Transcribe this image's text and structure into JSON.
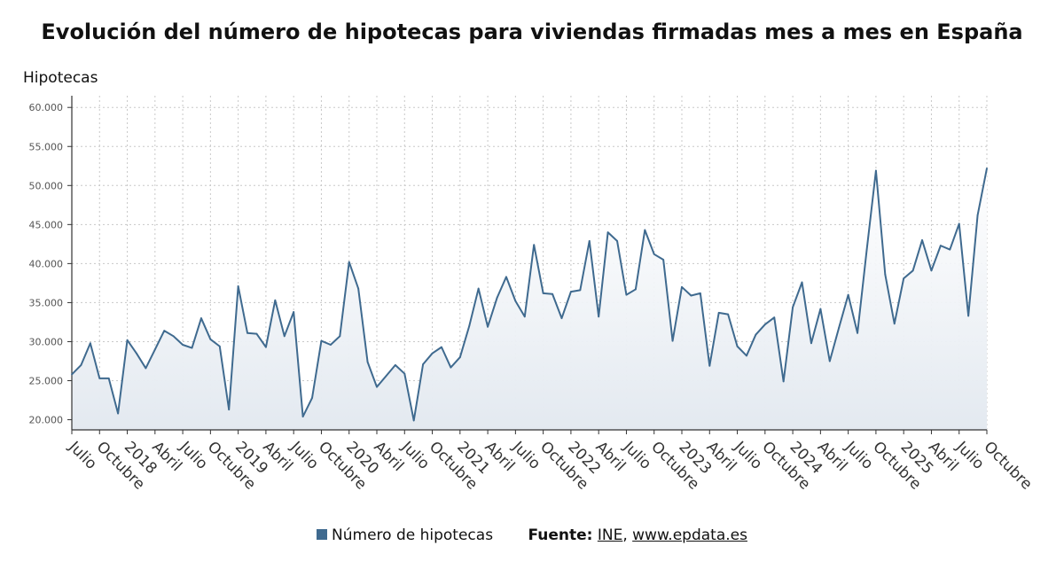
{
  "chart_data": {
    "type": "area",
    "title": "Evolución del número de hipotecas para viviendas firmadas mes a mes en España",
    "ylabel": "Hipotecas",
    "xlabel": "",
    "ylim": [
      18700,
      61500
    ],
    "yticks": [
      20000,
      25000,
      30000,
      35000,
      40000,
      45000,
      50000,
      55000,
      60000
    ],
    "ytick_labels": [
      "20.000",
      "25.000",
      "30.000",
      "35.000",
      "40.000",
      "45.000",
      "50.000",
      "55.000",
      "60.000"
    ],
    "grid": true,
    "legend_position": "bottom",
    "x_tick_labels": [
      "Julio",
      "Octubre",
      "2018",
      "Abril",
      "Julio",
      "Octubre",
      "2019",
      "Abril",
      "Julio",
      "Octubre",
      "2020",
      "Abril",
      "Julio",
      "Octubre",
      "2021",
      "Abril",
      "Julio",
      "Octubre",
      "2022",
      "Abril",
      "Julio",
      "Octubre",
      "2023",
      "Abril",
      "Julio",
      "Octubre",
      "2024",
      "Abril",
      "Julio",
      "Octubre",
      "2025",
      "Abril",
      "Julio",
      "Octubre"
    ],
    "x": [
      "2017-07",
      "2017-08",
      "2017-09",
      "2017-10",
      "2017-11",
      "2017-12",
      "2018-01",
      "2018-02",
      "2018-03",
      "2018-04",
      "2018-05",
      "2018-06",
      "2018-07",
      "2018-08",
      "2018-09",
      "2018-10",
      "2018-11",
      "2018-12",
      "2019-01",
      "2019-02",
      "2019-03",
      "2019-04",
      "2019-05",
      "2019-06",
      "2019-07",
      "2019-08",
      "2019-09",
      "2019-10",
      "2019-11",
      "2019-12",
      "2020-01",
      "2020-02",
      "2020-03",
      "2020-04",
      "2020-05",
      "2020-06",
      "2020-07",
      "2020-08",
      "2020-09",
      "2020-10",
      "2020-11",
      "2020-12",
      "2021-01",
      "2021-02",
      "2021-03",
      "2021-04",
      "2021-05",
      "2021-06",
      "2021-07",
      "2021-08",
      "2021-09",
      "2021-10",
      "2021-11",
      "2021-12",
      "2022-01",
      "2022-02",
      "2022-03",
      "2022-04",
      "2022-05",
      "2022-06",
      "2022-07",
      "2022-08",
      "2022-09",
      "2022-10",
      "2022-11",
      "2022-12",
      "2023-01",
      "2023-02",
      "2023-03",
      "2023-04",
      "2023-05",
      "2023-06",
      "2023-07",
      "2023-08",
      "2023-09",
      "2023-10",
      "2023-11",
      "2023-12",
      "2024-01",
      "2024-02",
      "2024-03",
      "2024-04",
      "2024-05",
      "2024-06",
      "2024-07",
      "2024-08",
      "2024-09",
      "2024-10",
      "2024-11",
      "2024-12",
      "2025-01",
      "2025-02",
      "2025-03",
      "2025-04",
      "2025-05",
      "2025-06",
      "2025-07",
      "2025-08",
      "2025-09",
      "2025-10"
    ],
    "series": [
      {
        "name": "Número de hipotecas",
        "color": "#3f6a8f",
        "values": [
          25800,
          27000,
          29800,
          25300,
          25300,
          20800,
          30200,
          28500,
          26600,
          29000,
          31400,
          30700,
          29600,
          29200,
          33000,
          30300,
          29400,
          21300,
          37100,
          31100,
          31000,
          29300,
          35300,
          30700,
          33800,
          20400,
          22800,
          30100,
          29600,
          30700,
          40200,
          36800,
          27400,
          24200,
          25600,
          27000,
          25900,
          19900,
          27100,
          28500,
          29300,
          26700,
          28000,
          32000,
          36800,
          31900,
          35600,
          38300,
          35200,
          33200,
          42400,
          36200,
          36100,
          33000,
          36400,
          36600,
          42900,
          33200,
          44000,
          42900,
          36000,
          36700,
          44300,
          41200,
          40500,
          30100,
          37000,
          35900,
          36200,
          26900,
          33700,
          33500,
          29400,
          28200,
          30900,
          32200,
          33100,
          24900,
          34400,
          37600,
          29800,
          34200,
          27500,
          31800,
          36000,
          31100,
          41700,
          51900,
          38600,
          32300,
          38100,
          39100,
          43000,
          39100,
          42300,
          41800,
          45100,
          33300,
          46200,
          52200
        ]
      }
    ]
  },
  "legend": {
    "label": "Número de hipotecas",
    "color": "#3f6a8f"
  },
  "source": {
    "label": "Fuente:",
    "link1": "INE",
    "separator": ",",
    "link2": "www.epdata.es"
  }
}
